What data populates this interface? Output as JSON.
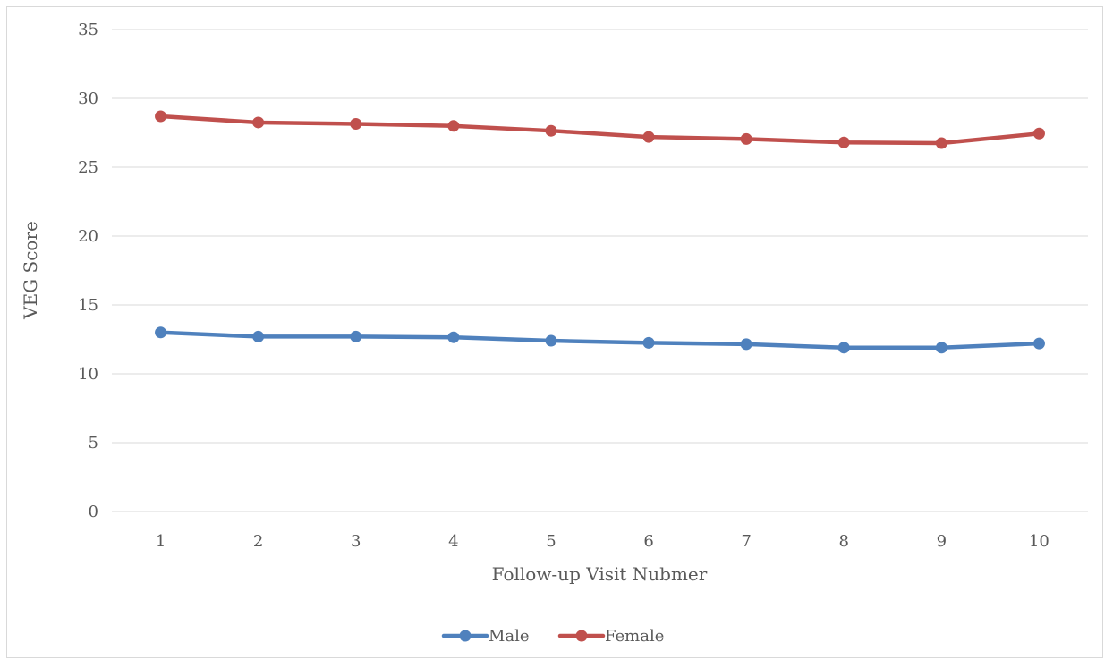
{
  "chart_data": {
    "type": "line",
    "title": "",
    "xlabel": "Follow-up Visit Nubmer",
    "ylabel": "VEG Score",
    "categories": [
      "1",
      "2",
      "3",
      "4",
      "5",
      "6",
      "7",
      "8",
      "9",
      "10"
    ],
    "yticks": [
      "0",
      "5",
      "10",
      "15",
      "20",
      "25",
      "30",
      "35"
    ],
    "ylim": [
      0,
      35
    ],
    "grid": true,
    "legend_position": "bottom",
    "series": [
      {
        "name": "Male",
        "color": "#4f81bd",
        "values": [
          13.0,
          12.7,
          12.7,
          12.65,
          12.4,
          12.25,
          12.15,
          11.9,
          11.9,
          12.2
        ]
      },
      {
        "name": "Female",
        "color": "#c0504d",
        "values": [
          28.7,
          28.25,
          28.15,
          28.0,
          27.65,
          27.2,
          27.05,
          26.8,
          26.75,
          27.45
        ]
      }
    ]
  }
}
